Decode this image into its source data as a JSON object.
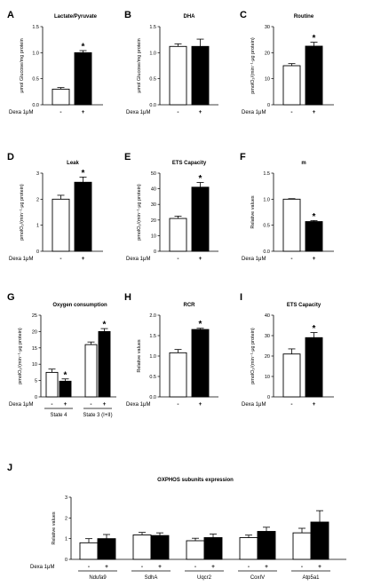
{
  "figure": {
    "dexa_label": "Dexa 1μM",
    "minus": "-",
    "plus": "+"
  },
  "chart_data": [
    {
      "id": "A",
      "type": "bar",
      "title": "Lactate/Pyruvate",
      "ylabel": "μmol Glucose/mg protein",
      "ylim": [
        0,
        1.5
      ],
      "yticks": [
        0,
        0.5,
        1.0,
        1.5
      ],
      "ytick_labels": [
        "0.0",
        "0.5",
        "1.0",
        "1.5"
      ],
      "categories": [
        "-",
        "+"
      ],
      "values": [
        0.3,
        1.0
      ],
      "errors": [
        0.03,
        0.04
      ],
      "fills": [
        "#ffffff",
        "#000000"
      ],
      "significant": [
        false,
        true
      ],
      "significance_mark": "*"
    },
    {
      "id": "B",
      "type": "bar",
      "title": "DHA",
      "ylabel": "μmol Glucose/mg protein",
      "ylim": [
        0,
        1.5
      ],
      "yticks": [
        0,
        0.5,
        1.0,
        1.5
      ],
      "ytick_labels": [
        "0.0",
        "0.5",
        "1.0",
        "1.5"
      ],
      "categories": [
        "-",
        "+"
      ],
      "values": [
        1.12,
        1.12
      ],
      "errors": [
        0.05,
        0.14
      ],
      "fills": [
        "#ffffff",
        "#000000"
      ],
      "significant": [
        false,
        false
      ],
      "significance_mark": "*"
    },
    {
      "id": "C",
      "type": "bar",
      "title": "Routine",
      "ylabel": "pmolO₂/(min⁻¹·μg protein)",
      "ylim": [
        0,
        30
      ],
      "yticks": [
        0,
        10,
        20,
        30
      ],
      "ytick_labels": [
        "0",
        "10",
        "20",
        "30"
      ],
      "categories": [
        "-",
        "+"
      ],
      "values": [
        15,
        22.5
      ],
      "errors": [
        0.8,
        1.5
      ],
      "fills": [
        "#ffffff",
        "#000000"
      ],
      "significant": [
        false,
        true
      ],
      "significance_mark": "*"
    },
    {
      "id": "D",
      "type": "bar",
      "title": "Leak",
      "ylabel": "pmolO₂/(min⁻¹·μg protein)",
      "ylim": [
        0,
        3
      ],
      "yticks": [
        0,
        1,
        2,
        3
      ],
      "ytick_labels": [
        "0",
        "1",
        "2",
        "3"
      ],
      "categories": [
        "-",
        "+"
      ],
      "values": [
        2.0,
        2.65
      ],
      "errors": [
        0.15,
        0.2
      ],
      "fills": [
        "#ffffff",
        "#000000"
      ],
      "significant": [
        false,
        true
      ],
      "significance_mark": "*"
    },
    {
      "id": "E",
      "type": "bar",
      "title": "ETS Capacity",
      "ylabel": "pmolO₂/(min⁻¹·μg protein)",
      "ylim": [
        0,
        50
      ],
      "yticks": [
        0,
        10,
        20,
        30,
        40,
        50
      ],
      "ytick_labels": [
        "0",
        "10",
        "20",
        "30",
        "40",
        "50"
      ],
      "categories": [
        "-",
        "+"
      ],
      "values": [
        21,
        41
      ],
      "errors": [
        1.5,
        3
      ],
      "fills": [
        "#ffffff",
        "#000000"
      ],
      "significant": [
        false,
        true
      ],
      "significance_mark": "*"
    },
    {
      "id": "F",
      "type": "bar",
      "title": "m",
      "ylabel": "Relative values",
      "ylim": [
        0,
        1.5
      ],
      "yticks": [
        0,
        0.5,
        1.0,
        1.5
      ],
      "ytick_labels": [
        "0.0",
        "0.5",
        "1.0",
        "1.5"
      ],
      "categories": [
        "-",
        "+"
      ],
      "values": [
        1.0,
        0.57
      ],
      "errors": [
        0.01,
        0.02
      ],
      "fills": [
        "#ffffff",
        "#000000"
      ],
      "significant": [
        false,
        true
      ],
      "significance_mark": "*"
    },
    {
      "id": "G",
      "type": "bar",
      "title": "Oxygen consumption",
      "ylabel": "pmolO₂/(min⁻¹·μg protein)",
      "ylim": [
        0,
        25
      ],
      "yticks": [
        0,
        5,
        10,
        15,
        20,
        25
      ],
      "ytick_labels": [
        "0",
        "5",
        "10",
        "15",
        "20",
        "25"
      ],
      "categories": [
        "-",
        "+",
        "-",
        "+"
      ],
      "groups": [
        "State 4",
        "State 3 (I+II)"
      ],
      "values": [
        7.5,
        4.8,
        16,
        20
      ],
      "errors": [
        1.0,
        0.7,
        0.8,
        0.9
      ],
      "fills": [
        "#ffffff",
        "#000000",
        "#ffffff",
        "#000000"
      ],
      "significant": [
        false,
        true,
        false,
        true
      ],
      "significance_mark": "*"
    },
    {
      "id": "H",
      "type": "bar",
      "title": "RCR",
      "ylabel": "Relative values",
      "ylim": [
        0,
        2.0
      ],
      "yticks": [
        0,
        0.5,
        1.0,
        1.5,
        2.0
      ],
      "ytick_labels": [
        "0.0",
        "0.5",
        "1.0",
        "1.5",
        "2.0"
      ],
      "categories": [
        "-",
        "+"
      ],
      "values": [
        1.08,
        1.65
      ],
      "errors": [
        0.08,
        0.03
      ],
      "fills": [
        "#ffffff",
        "#000000"
      ],
      "significant": [
        false,
        true
      ],
      "significance_mark": "*"
    },
    {
      "id": "I",
      "type": "bar",
      "title": "ETS Capacity",
      "ylabel": "pmolO₂/(min⁻¹·μg protein)",
      "ylim": [
        0,
        40
      ],
      "yticks": [
        0,
        10,
        20,
        30,
        40
      ],
      "ytick_labels": [
        "0",
        "10",
        "20",
        "30",
        "40"
      ],
      "categories": [
        "-",
        "+"
      ],
      "values": [
        21,
        29
      ],
      "errors": [
        2.5,
        2.5
      ],
      "fills": [
        "#ffffff",
        "#000000"
      ],
      "significant": [
        false,
        true
      ],
      "significance_mark": "*"
    },
    {
      "id": "J",
      "type": "bar",
      "title": "OXPHOS subunits expression",
      "ylabel": "Relative values",
      "ylim": [
        0,
        3
      ],
      "yticks": [
        0,
        1,
        2,
        3
      ],
      "ytick_labels": [
        "0",
        "1",
        "2",
        "3"
      ],
      "categories": [
        "-",
        "+",
        "-",
        "+",
        "-",
        "+",
        "-",
        "+",
        "-",
        "+"
      ],
      "groups": [
        "Ndufa9",
        "SdhA",
        "Uqcr2",
        "CoxIV",
        "Atp5a1"
      ],
      "values": [
        0.8,
        1.0,
        1.18,
        1.15,
        0.9,
        1.05,
        1.05,
        1.35,
        1.28,
        1.8
      ],
      "errors": [
        0.2,
        0.2,
        0.12,
        0.13,
        0.12,
        0.17,
        0.12,
        0.2,
        0.22,
        0.55
      ],
      "fills": [
        "#ffffff",
        "#000000",
        "#ffffff",
        "#000000",
        "#ffffff",
        "#000000",
        "#ffffff",
        "#000000",
        "#ffffff",
        "#000000"
      ],
      "significant": [
        false,
        false,
        false,
        false,
        false,
        false,
        false,
        false,
        false,
        false
      ],
      "significance_mark": "*"
    }
  ]
}
